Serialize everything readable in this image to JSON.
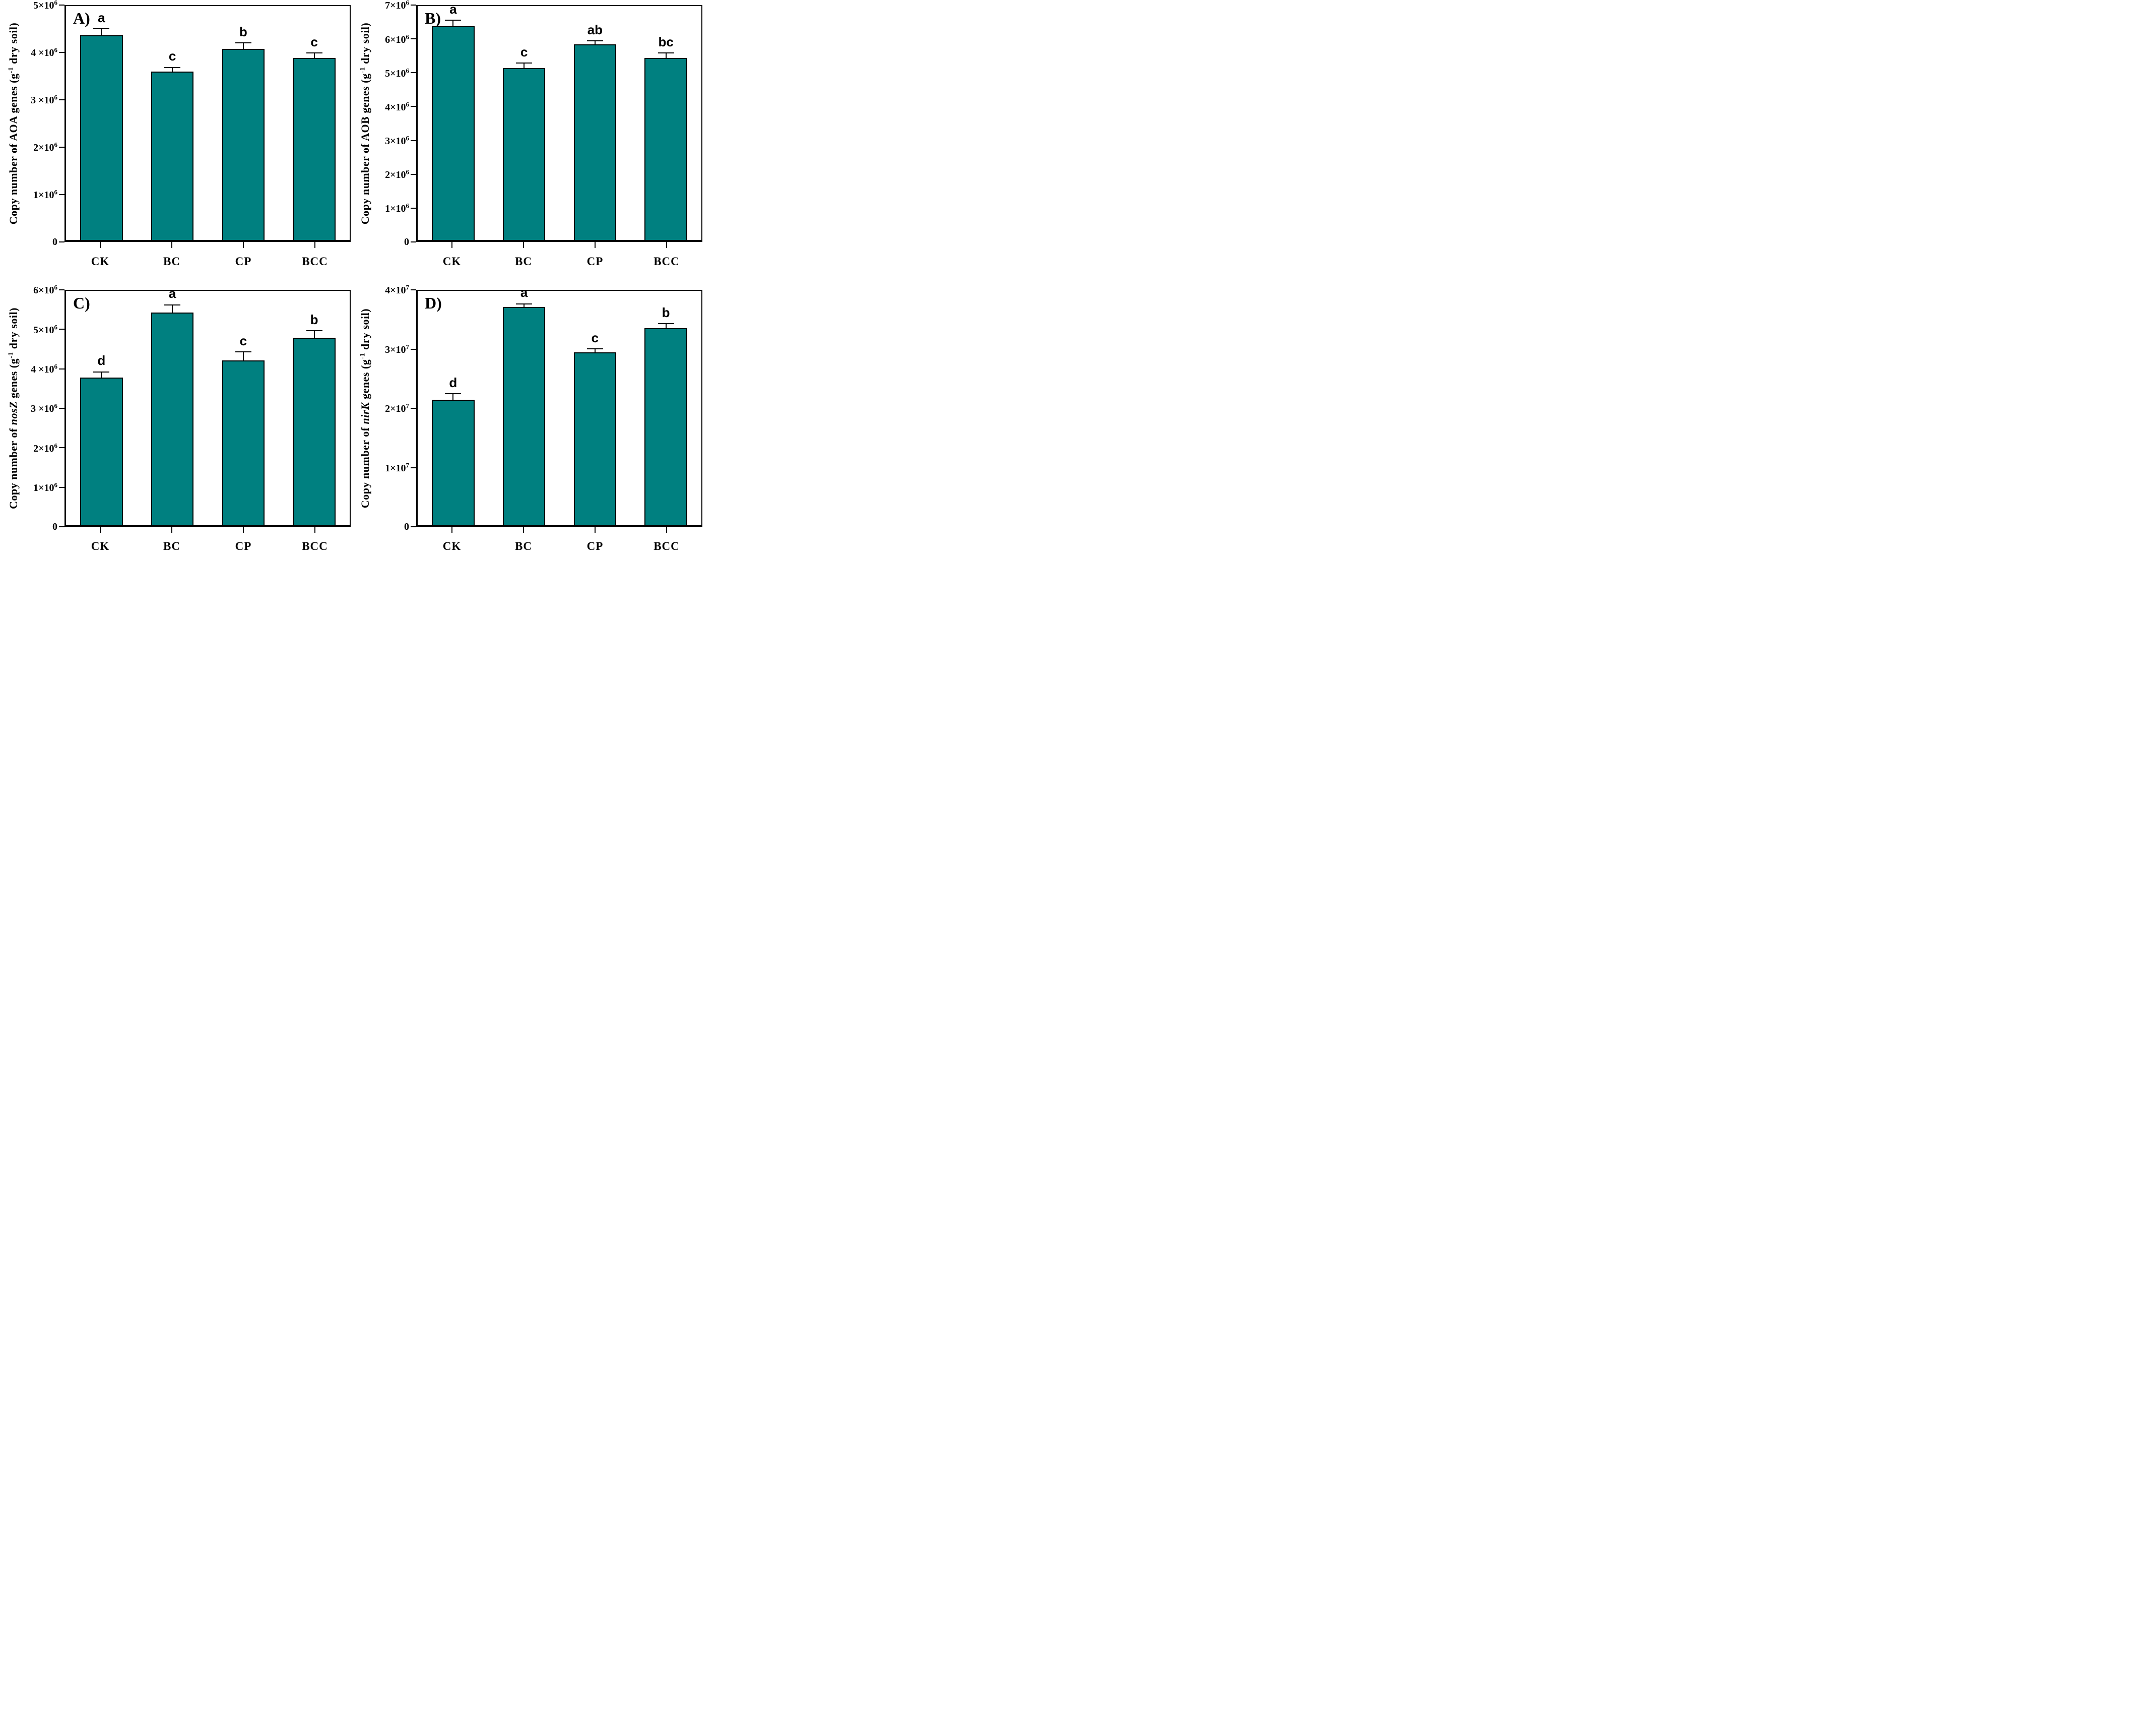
{
  "figure": {
    "bar_color": "#008080",
    "bar_outline_color": "#000000",
    "text_color": "#000000",
    "background": "#ffffff"
  },
  "chart_data": [
    {
      "type": "bar",
      "panel_label": "A)",
      "ylabel": {
        "pre": "Copy number of",
        "gene": "AOA",
        "gene_italic": false,
        "post": "genes (g",
        "sup": "-1",
        "tail": "dry soil)"
      },
      "ylabel_plain": "Copy number of AOA genes (g-1 dry soil)",
      "ymax": 5000000,
      "grid": false,
      "legend": false,
      "ticks": [
        {
          "value": 0,
          "label": "0"
        },
        {
          "value": 1000000,
          "label": "1×10^6"
        },
        {
          "value": 2000000,
          "label": "2×10^6"
        },
        {
          "value": 3000000,
          "label": "3 ×10^6"
        },
        {
          "value": 4000000,
          "label": "4 ×10^6"
        },
        {
          "value": 5000000,
          "label": "5×10^6"
        }
      ],
      "categories": [
        "CK",
        "BC",
        "CP",
        "BCC"
      ],
      "values": [
        4380000,
        3600000,
        4080000,
        3890000
      ],
      "errors": [
        120000,
        80000,
        120000,
        100000
      ],
      "sig_letters": [
        "a",
        "c",
        "b",
        "c"
      ]
    },
    {
      "type": "bar",
      "panel_label": "B)",
      "ylabel": {
        "pre": "Copy number of",
        "gene": "AOB",
        "gene_italic": false,
        "post": "genes (g",
        "sup": "-1",
        "tail": "dry soil)"
      },
      "ylabel_plain": "Copy number of AOB genes (g-1 dry soil)",
      "ymax": 7000000,
      "grid": false,
      "legend": false,
      "ticks": [
        {
          "value": 0,
          "label": "0"
        },
        {
          "value": 1000000,
          "label": "1×10^6"
        },
        {
          "value": 2000000,
          "label": "2×10^6"
        },
        {
          "value": 3000000,
          "label": "3×10^6"
        },
        {
          "value": 4000000,
          "label": "4×10^6"
        },
        {
          "value": 5000000,
          "label": "5×10^6"
        },
        {
          "value": 6000000,
          "label": "6×10^6"
        },
        {
          "value": 7000000,
          "label": "7×10^6"
        }
      ],
      "categories": [
        "CK",
        "BC",
        "CP",
        "BCC"
      ],
      "values": [
        6400000,
        5150000,
        5850000,
        5450000
      ],
      "errors": [
        160000,
        130000,
        90000,
        130000
      ],
      "sig_letters": [
        "a",
        "c",
        "ab",
        "bc"
      ]
    },
    {
      "type": "bar",
      "panel_label": "C)",
      "ylabel": {
        "pre": "Copy number of",
        "gene": "nosZ",
        "gene_italic": true,
        "post": "genes (g",
        "sup": "-1",
        "tail": "dry soil)"
      },
      "ylabel_plain": "Copy number of nosZ genes (g-1 dry soil)",
      "ymax": 6000000,
      "grid": false,
      "legend": false,
      "ticks": [
        {
          "value": 0,
          "label": "0"
        },
        {
          "value": 1000000,
          "label": "1×10^6"
        },
        {
          "value": 2000000,
          "label": "2×10^6"
        },
        {
          "value": 3000000,
          "label": "3 ×10^6"
        },
        {
          "value": 4000000,
          "label": "4 ×10^6"
        },
        {
          "value": 5000000,
          "label": "5×10^6"
        },
        {
          "value": 6000000,
          "label": "6×10^6"
        }
      ],
      "categories": [
        "CK",
        "BC",
        "CP",
        "BCC"
      ],
      "values": [
        3780000,
        5450000,
        4220000,
        4800000
      ],
      "errors": [
        130000,
        180000,
        200000,
        160000
      ],
      "sig_letters": [
        "d",
        "a",
        "c",
        "b"
      ]
    },
    {
      "type": "bar",
      "panel_label": "D)",
      "ylabel": {
        "pre": "Copy number of",
        "gene": "nirK",
        "gene_italic": true,
        "post": "genes (g",
        "sup": "-1",
        "tail": "dry soil)"
      },
      "ylabel_plain": "Copy number of nirK genes (g-1 dry soil)",
      "ymax": 40000000,
      "grid": false,
      "legend": false,
      "ticks": [
        {
          "value": 0,
          "label": "0"
        },
        {
          "value": 10000000,
          "label": "1×10^7"
        },
        {
          "value": 20000000,
          "label": "2×10^7"
        },
        {
          "value": 30000000,
          "label": "3×10^7"
        },
        {
          "value": 40000000,
          "label": "4×10^7"
        }
      ],
      "categories": [
        "CK",
        "BC",
        "CP",
        "BCC"
      ],
      "values": [
        21400000,
        37200000,
        29500000,
        33600000
      ],
      "errors": [
        900000,
        500000,
        500000,
        700000
      ],
      "sig_letters": [
        "d",
        "a",
        "c",
        "b"
      ]
    }
  ]
}
